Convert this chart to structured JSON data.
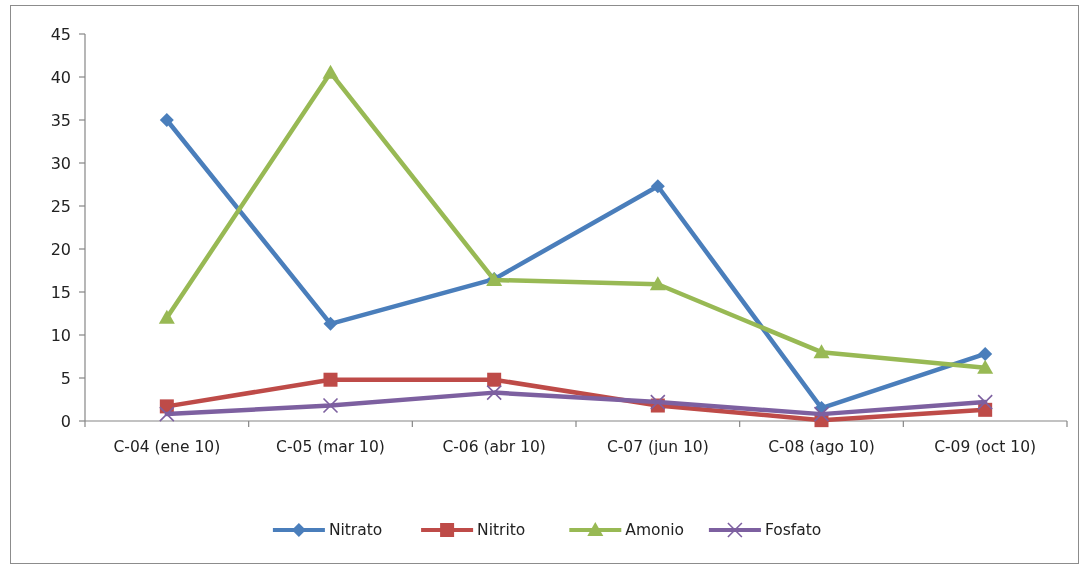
{
  "chart_data": {
    "type": "line",
    "categories": [
      "C-04 (ene 10)",
      "C-05 (mar 10)",
      "C-06 (abr 10)",
      "C-07 (jun 10)",
      "C-08 (ago 10)",
      "C-09 (oct 10)"
    ],
    "series": [
      {
        "name": "Nitrato",
        "color": "#4a7ebb",
        "marker": "diamond",
        "values": [
          35,
          11.3,
          16.5,
          27.3,
          1.5,
          7.8
        ]
      },
      {
        "name": "Nitrito",
        "color": "#be4b48",
        "marker": "square",
        "values": [
          1.7,
          4.8,
          4.8,
          1.8,
          0.1,
          1.3
        ]
      },
      {
        "name": "Amonio",
        "color": "#98b954",
        "marker": "triangle",
        "values": [
          12,
          40.5,
          16.4,
          15.9,
          8,
          6.2
        ]
      },
      {
        "name": "Fosfato",
        "color": "#7d60a0",
        "marker": "cross",
        "values": [
          0.8,
          1.8,
          3.3,
          2.2,
          0.8,
          2.2
        ]
      }
    ],
    "ylim": [
      0,
      45
    ],
    "yticks": [
      0,
      5,
      10,
      15,
      20,
      25,
      30,
      35,
      40,
      45
    ],
    "grid": false,
    "legend": "bottom",
    "line_style": "solid"
  }
}
